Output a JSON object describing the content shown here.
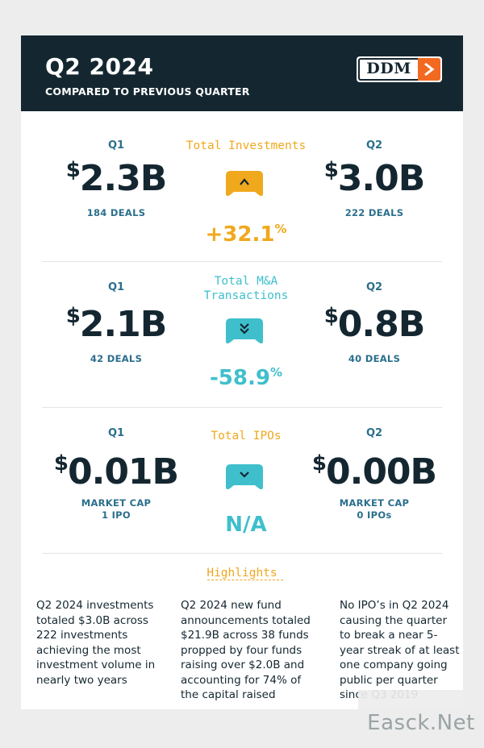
{
  "header": {
    "title": "Q2 2024",
    "subtitle": "COMPARED TO PREVIOUS QUARTER",
    "logo_text": "DDM"
  },
  "sections": [
    {
      "metric": "Total Investments",
      "q1_label": "Q1",
      "q1_currency": "$",
      "q1_value": "2.3B",
      "q1_detail": "184 DEALS",
      "q2_label": "Q2",
      "q2_currency": "$",
      "q2_value": "3.0B",
      "q2_detail": "222 DEALS",
      "change": "+32.1",
      "change_unit": "%",
      "direction": "up",
      "color": "#f0a81d"
    },
    {
      "metric": "Total M&A Transactions",
      "q1_label": "Q1",
      "q1_currency": "$",
      "q1_value": "2.1B",
      "q1_detail": "42 DEALS",
      "q2_label": "Q2",
      "q2_currency": "$",
      "q2_value": "0.8B",
      "q2_detail": "40 DEALS",
      "change": "-58.9",
      "change_unit": "%",
      "direction": "double-down",
      "color": "#3fbfcc"
    },
    {
      "metric": "Total IPOs",
      "q1_label": "Q1",
      "q1_currency": "$",
      "q1_value": "0.01B",
      "q1_detail_1": "MARKET CAP",
      "q1_detail_2": "1 IPO",
      "q2_label": "Q2",
      "q2_currency": "$",
      "q2_value": "0.00B",
      "q2_detail_1": "MARKET CAP",
      "q2_detail_2": "0 IPOs",
      "change": "N/A",
      "direction": "down",
      "color": "#3fbfcc"
    }
  ],
  "highlights": {
    "title": "Highlights",
    "items": [
      "Q2 2024 investments totaled $3.0B across 222 investments achieving the most investment volume in nearly two years",
      "Q2 2024 new fund announcements totaled $21.9B across 38 funds propped by four funds raising over $2.0B and accounting for 74% of the capital raised",
      "No IPO’s in Q2 2024 causing the quarter to break a near 5-year streak of at least one company going public per quarter since Q3 2019"
    ]
  },
  "watermark": "Easck.Net",
  "colors": {
    "navy": "#142731",
    "orange": "#f0a81d",
    "teal": "#3fbfcc",
    "label_blue": "#2b6f8c",
    "logo_orange": "#f26a21"
  }
}
